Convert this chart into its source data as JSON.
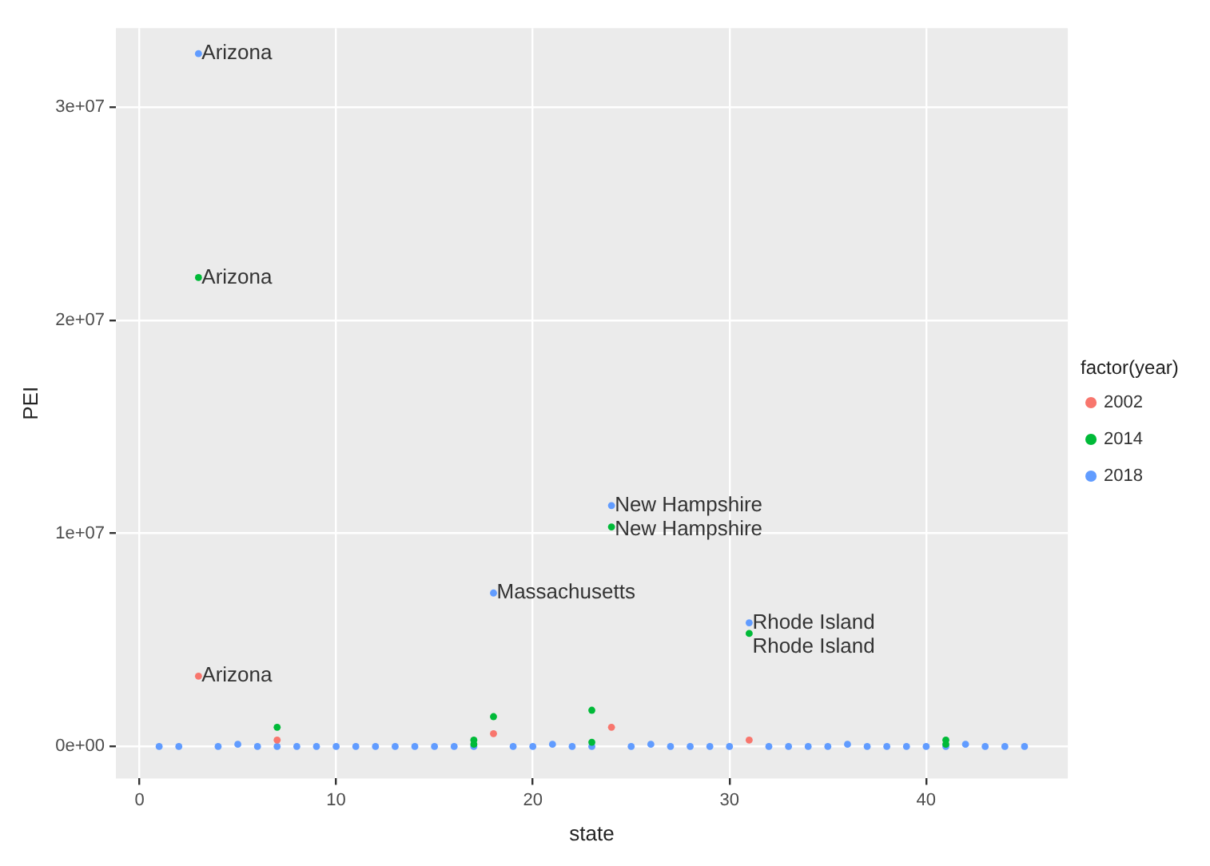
{
  "chart_data": {
    "type": "scatter",
    "xlabel": "state",
    "ylabel": "PEI",
    "legend_title": "factor(year)",
    "legend": "right",
    "grid": true,
    "marker": "circle",
    "xlim": [
      -1.2,
      47.2
    ],
    "xticks": [
      0,
      10,
      20,
      30,
      40
    ],
    "ylim": [
      -1500000,
      33700000
    ],
    "yticks": [
      {
        "value": 0,
        "label": "0e+00"
      },
      {
        "value": 10000000,
        "label": "1e+07"
      },
      {
        "value": 20000000,
        "label": "2e+07"
      },
      {
        "value": 30000000,
        "label": "3e+07"
      }
    ],
    "series": [
      {
        "name": "2002",
        "color": "#f8766d",
        "x": [
          3,
          7,
          18,
          24,
          31
        ],
        "values": [
          3300000,
          300000,
          600000,
          900000,
          300000
        ]
      },
      {
        "name": "2014",
        "color": "#00ba38",
        "x": [
          3,
          7,
          17,
          17,
          18,
          23,
          23,
          24,
          31,
          41,
          41
        ],
        "values": [
          22000000,
          900000,
          300000,
          100000,
          1400000,
          1700000,
          200000,
          10300000,
          5300000,
          300000,
          100000
        ]
      },
      {
        "name": "2018",
        "color": "#619cff",
        "x": [
          1,
          2,
          3,
          4,
          5,
          6,
          7,
          8,
          9,
          10,
          11,
          12,
          13,
          14,
          15,
          16,
          17,
          18,
          19,
          20,
          21,
          22,
          23,
          25,
          26,
          27,
          28,
          29,
          30,
          31,
          32,
          33,
          34,
          35,
          36,
          37,
          38,
          39,
          40,
          41,
          42,
          43,
          44,
          45,
          24
        ],
        "values": [
          0,
          0,
          32500000,
          0,
          100000,
          0,
          0,
          0,
          0,
          0,
          0,
          0,
          0,
          0,
          0,
          0,
          0,
          7200000,
          0,
          0,
          100000,
          0,
          0,
          0,
          100000,
          0,
          0,
          0,
          0,
          5800000,
          0,
          0,
          0,
          0,
          100000,
          0,
          0,
          0,
          0,
          0,
          100000,
          0,
          0,
          0,
          11300000
        ]
      }
    ],
    "annotations": [
      {
        "text": "Arizona",
        "x": 3,
        "y": 32500000
      },
      {
        "text": "Arizona",
        "x": 3,
        "y": 22000000
      },
      {
        "text": "Arizona",
        "x": 3,
        "y": 3300000
      },
      {
        "text": "New Hampshire",
        "x": 24,
        "y": 11300000
      },
      {
        "text": "New Hampshire",
        "x": 24,
        "y": 10300000
      },
      {
        "text": "Massachusetts",
        "x": 18,
        "y": 7200000
      },
      {
        "text": "Rhode Island",
        "x": 31,
        "y": 5800000
      },
      {
        "text": "Rhode Island",
        "x": 31,
        "y": 5300000
      }
    ]
  }
}
